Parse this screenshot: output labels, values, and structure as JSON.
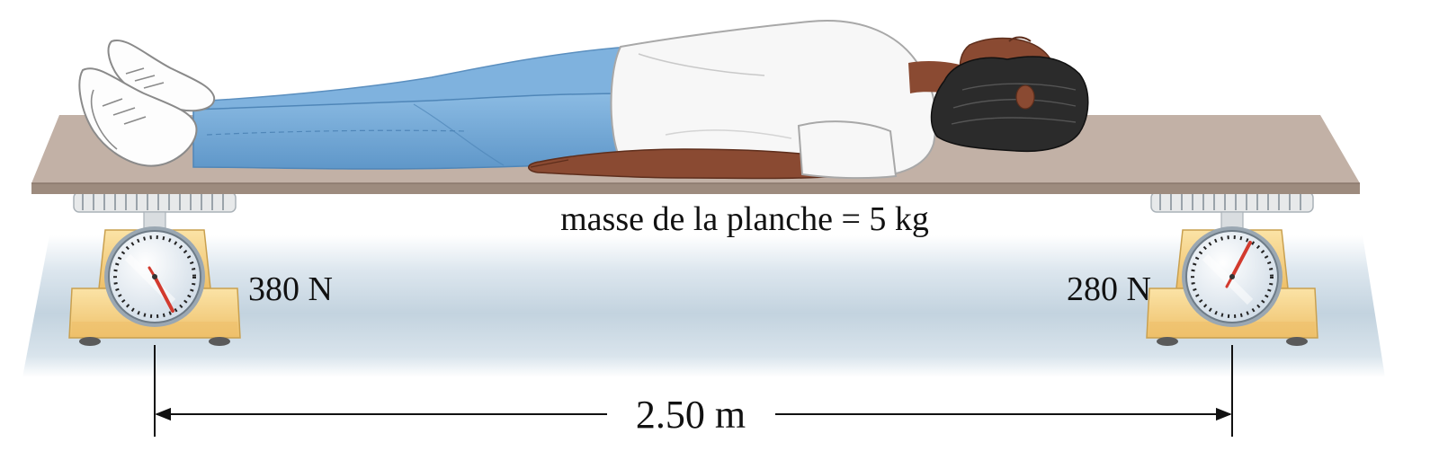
{
  "labels": {
    "board_mass": "masse de la planche = 5 kg",
    "left_scale_reading": "380 N",
    "right_scale_reading": "280 N",
    "distance_between_scales": "2.50 m"
  },
  "colors": {
    "board_top": "#c2b1a6",
    "board_edge": "#9d8b7e",
    "floor": "#c5d5e0",
    "scale_body": "#f4d07e",
    "scale_dial": "#eef4fa",
    "needle": "#d23a2e",
    "jeans": "#6fa6d6",
    "shirt": "#f7f7f7",
    "skin": "#8a4a32",
    "hair": "#2b2b2b"
  },
  "icons": {
    "left_scale": "bathroom-scale-icon",
    "right_scale": "bathroom-scale-icon",
    "person": "lying-person-icon"
  }
}
